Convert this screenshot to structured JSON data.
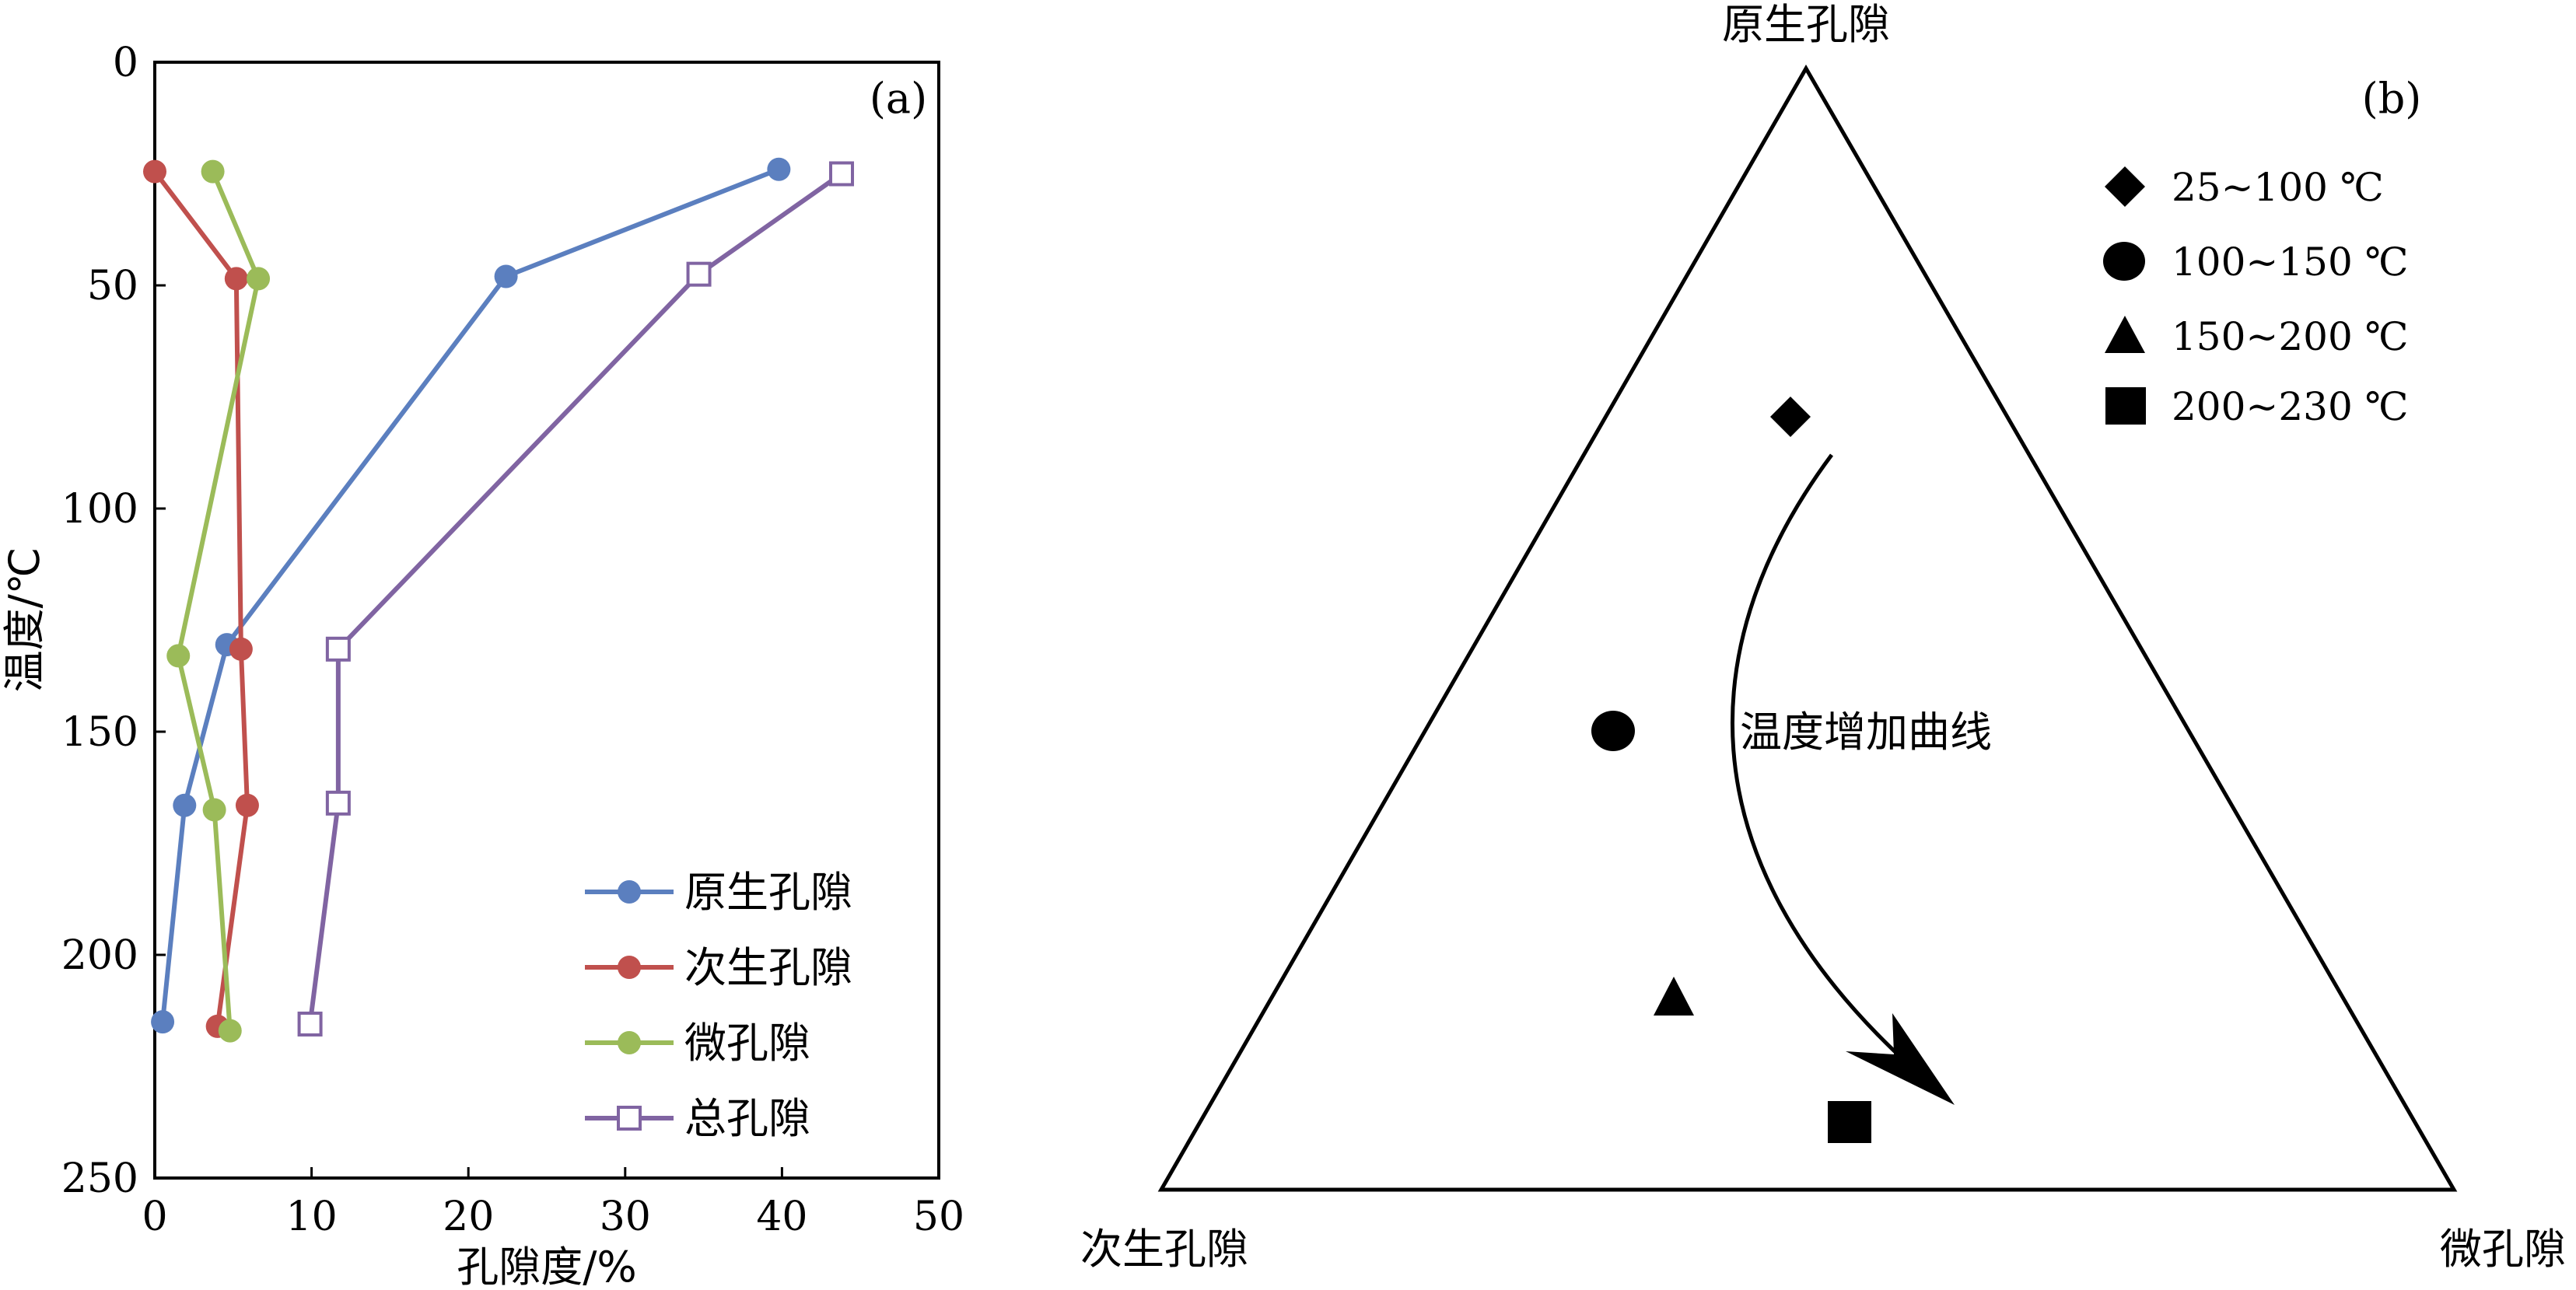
{
  "panel_a": {
    "label": "(a)",
    "xlabel": "孔隙度/%",
    "ylabel": "温度/℃",
    "x_ticks": [
      "0",
      "10",
      "20",
      "30",
      "40",
      "50"
    ],
    "y_ticks": [
      "0",
      "50",
      "100",
      "150",
      "200",
      "250"
    ]
  },
  "panel_b": {
    "label": "(b)",
    "vertex_top": "原生孔隙",
    "vertex_left": "次生孔隙",
    "vertex_right": "微孔隙",
    "curve_label": "温度增加曲线",
    "legend": [
      {
        "label": "25~100 ℃",
        "marker": "diamond"
      },
      {
        "label": "100~150 ℃",
        "marker": "circle"
      },
      {
        "label": "150~200 ℃",
        "marker": "triangle"
      },
      {
        "label": "200~230 ℃",
        "marker": "square"
      }
    ]
  },
  "chart_data": [
    {
      "type": "line",
      "xlabel": "孔隙度/%",
      "ylabel": "温度/℃",
      "xlim": [
        0,
        50
      ],
      "ylim": [
        0,
        250
      ],
      "y_inverted": true,
      "grid": false,
      "legend_position": "bottom-right",
      "series": [
        {
          "name": "原生孔隙",
          "color": "#5b7fbf",
          "marker": "filled-circle",
          "points": [
            [
              39.8,
              24
            ],
            [
              22.4,
              48
            ],
            [
              4.6,
              130.5
            ],
            [
              1.9,
              166.5
            ],
            [
              0.5,
              215
            ]
          ]
        },
        {
          "name": "次生孔隙",
          "color": "#c0504d",
          "marker": "filled-circle",
          "points": [
            [
              0,
              24.5
            ],
            [
              5.2,
              48.5
            ],
            [
              5.5,
              131.5
            ],
            [
              5.9,
              166.5
            ],
            [
              4.0,
              216
            ]
          ]
        },
        {
          "name": "微孔隙",
          "color": "#9bbb59",
          "marker": "filled-circle",
          "points": [
            [
              3.7,
              24.5
            ],
            [
              6.6,
              48.5
            ],
            [
              1.5,
              133
            ],
            [
              3.8,
              167.5
            ],
            [
              4.8,
              217
            ]
          ]
        },
        {
          "name": "总孔隙",
          "color": "#8064a2",
          "marker": "hollow-square",
          "points": [
            [
              43.8,
              25
            ],
            [
              34.7,
              47.5
            ],
            [
              11.7,
              131.5
            ],
            [
              11.7,
              166
            ],
            [
              9.9,
              215.5
            ]
          ]
        }
      ]
    },
    {
      "type": "scatter",
      "subtype": "ternary",
      "axes": [
        "原生孔隙",
        "次生孔隙",
        "微孔隙"
      ],
      "points": [
        {
          "name": "25~100 ℃",
          "marker": "diamond",
          "values": [
            0.74,
            0.13,
            0.13
          ]
        },
        {
          "name": "100~150 ℃",
          "marker": "circle",
          "values": [
            0.41,
            0.47,
            0.12
          ]
        },
        {
          "name": "150~200 ℃",
          "marker": "triangle",
          "values": [
            0.17,
            0.55,
            0.28
          ]
        },
        {
          "name": "200~230 ℃",
          "marker": "square",
          "values": [
            0.06,
            0.48,
            0.46
          ]
        }
      ],
      "annotation": "温度增加曲线"
    }
  ]
}
